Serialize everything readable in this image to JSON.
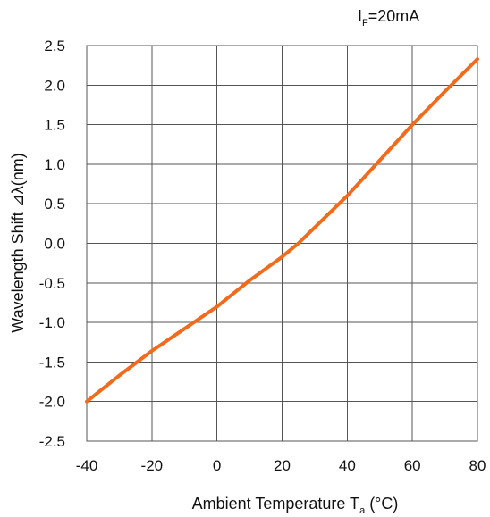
{
  "chart_data": {
    "type": "line",
    "annotation": {
      "main": "I",
      "sub": "F",
      "rest": "=20mA"
    },
    "xlabel": {
      "main": "Ambient Temperature T",
      "sub": "a",
      "rest": " (°C)"
    },
    "ylabel": "Wavelength Shift  ⊿λ(nm)",
    "xlim": [
      -40,
      80
    ],
    "ylim": [
      -2.5,
      2.5
    ],
    "x_ticks": [
      -40,
      -20,
      0,
      20,
      40,
      60,
      80
    ],
    "x_tick_labels": [
      "-40",
      "-20",
      "0",
      "20",
      "40",
      "60",
      "80"
    ],
    "y_ticks": [
      -2.5,
      -2.0,
      -1.5,
      -1.0,
      -0.5,
      0.0,
      0.5,
      1.0,
      1.5,
      2.0,
      2.5
    ],
    "y_tick_labels": [
      "-2.5",
      "-2.0",
      "-1.5",
      "-1.0",
      "-0.5",
      "0.0",
      "0.5",
      "1.0",
      "1.5",
      "2.0",
      "2.5"
    ],
    "grid": true,
    "line_color": "#f26b1d",
    "series": [
      {
        "x": [
          -40,
          -30,
          -20,
          -10,
          0,
          10,
          20,
          25,
          30,
          40,
          50,
          60,
          70,
          80
        ],
        "y": [
          -2.0,
          -1.67,
          -1.36,
          -1.08,
          -0.8,
          -0.47,
          -0.17,
          0.0,
          0.2,
          0.6,
          1.05,
          1.5,
          1.92,
          2.33
        ]
      }
    ]
  }
}
